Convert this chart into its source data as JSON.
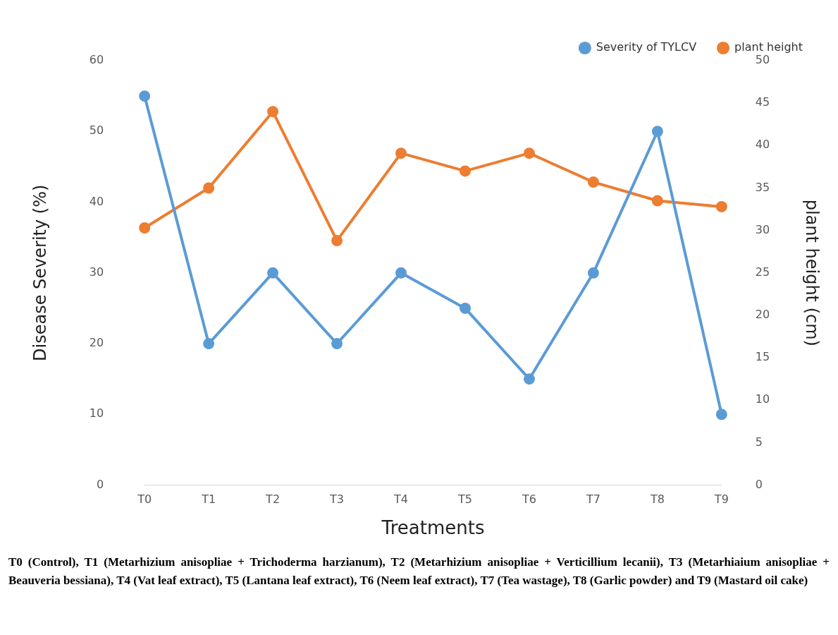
{
  "chart_data": {
    "type": "line",
    "xlabel": "Treatments",
    "ylabel": "Disease Severity (%)",
    "y2label": "plant height (cm)",
    "categories": [
      "T0",
      "T1",
      "T2",
      "T3",
      "T4",
      "T5",
      "T6",
      "T7",
      "T8",
      "T9"
    ],
    "series": [
      {
        "name": "Severity of TYLCV",
        "color": "#5b9bd5",
        "values": [
          55,
          20,
          30,
          20,
          30,
          25,
          15,
          30,
          50,
          10
        ]
      },
      {
        "name": "plant height",
        "color": "#ed7d31",
        "axis": "y2",
        "values": [
          30.3,
          35,
          44,
          28.8,
          39.1,
          37,
          39.1,
          35.7,
          33.5,
          32.8
        ]
      }
    ],
    "ylim": [
      0,
      60
    ],
    "yticks": [
      0,
      10,
      20,
      30,
      40,
      50,
      60
    ],
    "y2lim": [
      0,
      50
    ],
    "y2ticks": [
      0,
      5,
      10,
      15,
      20,
      25,
      30,
      35,
      40,
      45,
      50
    ],
    "grid": false,
    "legend": "top right",
    "marker": "circle",
    "line_style": "solid",
    "annotations": [
      "T0 (Control), T1 (Metarhizium anisopliae + Trichoderma harzianum), T2 (Metarhizium anisopliae + Verticillium lecanii), T3 (Metarhiaium anisopliae + Beauveria bessiana), T4 (Vat leaf extract), T5 (Lantana leaf extract), T6 (Neem leaf extract), T7 (Tea wastage), T8 (Garlic powder) and T9 (Mastard oil cake)"
    ]
  }
}
